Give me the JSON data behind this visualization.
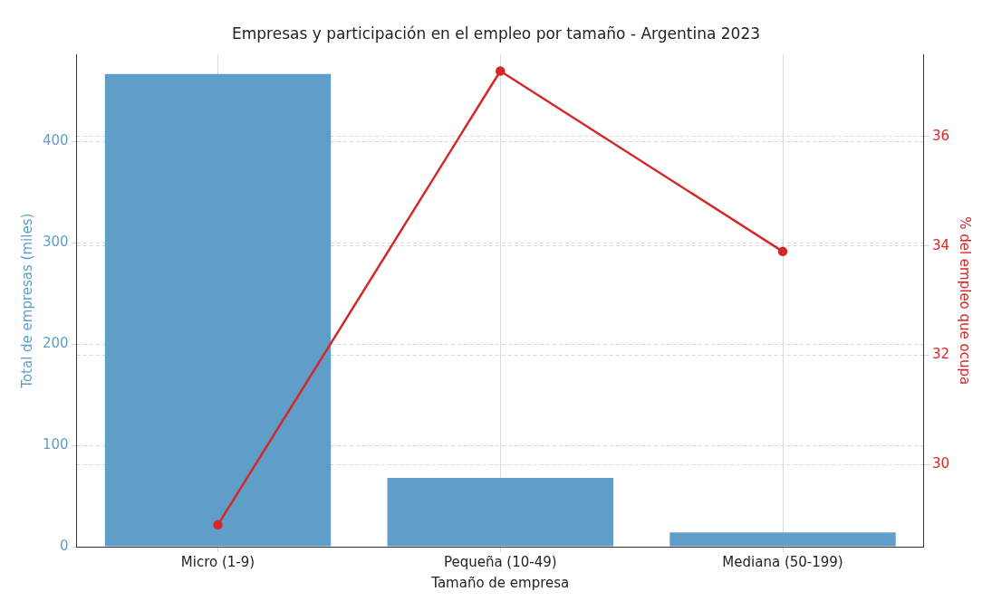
{
  "chart_data": {
    "type": "bar",
    "title": "Empresas y participación en el empleo por tamaño - Argentina 2023",
    "xlabel": "Tamaño de empresa",
    "ylabel": "Total de empresas (miles)",
    "y2label": "% del empleo que ocupa",
    "categories": [
      "Micro (1-9)",
      "Pequeña (10-49)",
      "Mediana (50-199)"
    ],
    "series": [
      {
        "color": "#5f9ec9",
        "values": [
          467,
          68,
          14
        ]
      },
      {
        "type": "line",
        "axis": "y2",
        "color": "#d62728",
        "values": [
          28.9,
          37.2,
          33.9
        ],
        "marker": "circle",
        "line_style": "solid"
      }
    ],
    "ylim": [
      0,
      486
    ],
    "yticks": [
      0,
      100,
      200,
      300,
      400
    ],
    "y2lim": [
      28.5,
      37.5
    ],
    "y2ticks": [
      30,
      32,
      34,
      36
    ],
    "grid": true,
    "legend": false
  }
}
